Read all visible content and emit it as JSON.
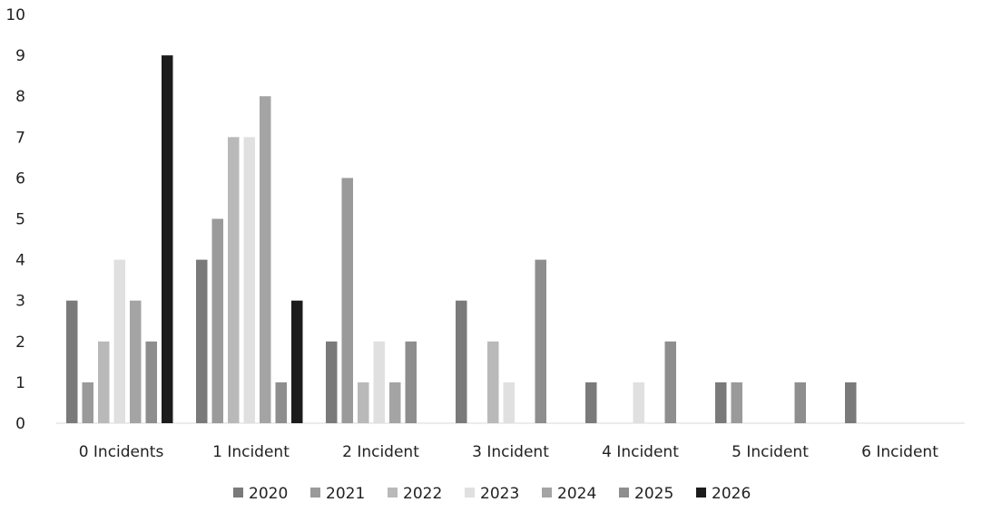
{
  "chart_data": {
    "type": "bar",
    "title": "",
    "xlabel": "",
    "ylabel": "",
    "ylim": [
      0,
      10
    ],
    "y_ticks": [
      "0",
      "1",
      "2",
      "3",
      "4",
      "5",
      "6",
      "7",
      "8",
      "9",
      "10"
    ],
    "grid": false,
    "legend_position": "bottom",
    "categories": [
      "0 Incidents",
      "1 Incident",
      "2 Incident",
      "3 Incident",
      "4 Incident",
      "5 Incident",
      "6 Incident"
    ],
    "series": [
      {
        "name": "2020",
        "color": "#7a7a7a",
        "values": [
          3,
          4,
          2,
          3,
          1,
          1,
          1
        ]
      },
      {
        "name": "2021",
        "color": "#9a9a9a",
        "values": [
          1,
          5,
          6,
          0,
          0,
          1,
          0
        ]
      },
      {
        "name": "2022",
        "color": "#b9b9b9",
        "values": [
          2,
          7,
          1,
          2,
          0,
          0,
          0
        ]
      },
      {
        "name": "2023",
        "color": "#e0e0e0",
        "values": [
          4,
          7,
          2,
          1,
          1,
          0,
          0
        ]
      },
      {
        "name": "2024",
        "color": "#a4a4a4",
        "values": [
          3,
          8,
          1,
          0,
          0,
          0,
          0
        ]
      },
      {
        "name": "2025",
        "color": "#8e8e8e",
        "values": [
          2,
          1,
          2,
          4,
          2,
          1,
          0
        ]
      },
      {
        "name": "2026",
        "color": "#1c1c1c",
        "values": [
          9,
          3,
          0,
          0,
          0,
          0,
          0
        ]
      }
    ]
  }
}
